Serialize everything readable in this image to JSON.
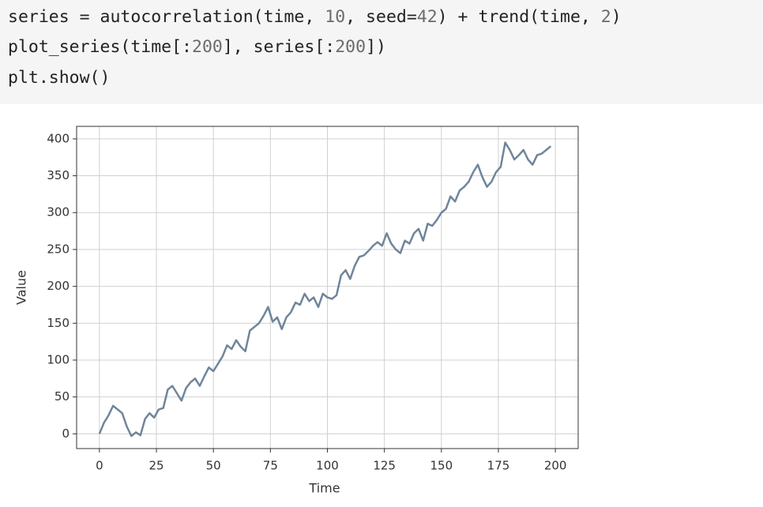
{
  "code": {
    "lines": [
      "series = autocorrelation(time, 10, seed=42) + trend(time, 2)",
      "plot_series(time[:200], series[:200])",
      "plt.show()"
    ]
  },
  "chart_data": {
    "type": "line",
    "xlabel": "Time",
    "ylabel": "Value",
    "x": [
      0,
      2,
      4,
      6,
      8,
      10,
      12,
      14,
      16,
      18,
      20,
      22,
      24,
      26,
      28,
      30,
      32,
      34,
      36,
      38,
      40,
      42,
      44,
      46,
      48,
      50,
      52,
      54,
      56,
      58,
      60,
      62,
      64,
      66,
      68,
      70,
      72,
      74,
      76,
      78,
      80,
      82,
      84,
      86,
      88,
      90,
      92,
      94,
      96,
      98,
      100,
      102,
      104,
      106,
      108,
      110,
      112,
      114,
      116,
      118,
      120,
      122,
      124,
      126,
      128,
      130,
      132,
      134,
      136,
      138,
      140,
      142,
      144,
      146,
      148,
      150,
      152,
      154,
      156,
      158,
      160,
      162,
      164,
      166,
      168,
      170,
      172,
      174,
      176,
      178,
      180,
      182,
      184,
      186,
      188,
      190,
      192,
      194,
      196,
      198
    ],
    "series": [
      {
        "color": "#6f859b",
        "values": [
          0,
          15,
          25,
          38,
          33,
          28,
          10,
          -3,
          2,
          -2,
          20,
          28,
          22,
          33,
          35,
          60,
          65,
          55,
          45,
          62,
          70,
          75,
          65,
          78,
          90,
          85,
          95,
          105,
          120,
          115,
          127,
          118,
          112,
          140,
          145,
          150,
          160,
          172,
          152,
          158,
          142,
          158,
          165,
          178,
          175,
          190,
          180,
          185,
          172,
          190,
          185,
          183,
          188,
          215,
          222,
          210,
          228,
          240,
          242,
          248,
          255,
          260,
          255,
          272,
          258,
          250,
          245,
          262,
          258,
          272,
          278,
          262,
          285,
          282,
          290,
          300,
          305,
          322,
          315,
          330,
          335,
          342,
          355,
          365,
          348,
          335,
          342,
          355,
          362,
          395,
          385,
          372,
          378,
          385,
          372,
          365,
          378,
          380,
          385,
          390
        ]
      }
    ],
    "xlim": [
      -10,
      210
    ],
    "ylim": [
      -20,
      417
    ],
    "xticks": [
      0,
      25,
      50,
      75,
      100,
      125,
      150,
      175,
      200
    ],
    "yticks": [
      0,
      50,
      100,
      150,
      200,
      250,
      300,
      350,
      400
    ],
    "grid": true
  }
}
